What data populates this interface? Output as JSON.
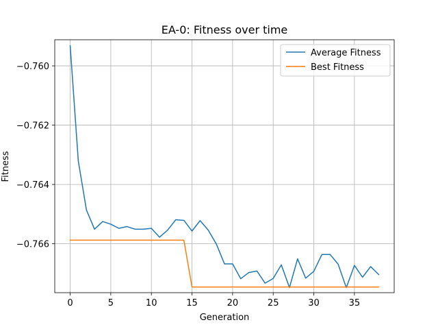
{
  "chart_data": {
    "type": "line",
    "title": "EA-0: Fitness over time",
    "xlabel": "Generation",
    "ylabel": "Fitness",
    "xlim": [
      -1.9,
      39.9
    ],
    "ylim": [
      -0.76765,
      -0.75912
    ],
    "xticks": [
      0,
      5,
      10,
      15,
      20,
      25,
      30,
      35
    ],
    "xtick_labels": [
      "0",
      "5",
      "10",
      "15",
      "20",
      "25",
      "30",
      "35"
    ],
    "yticks": [
      -0.76,
      -0.762,
      -0.764,
      -0.766
    ],
    "ytick_labels": [
      "−0.760",
      "−0.762",
      "−0.764",
      "−0.766"
    ],
    "grid": true,
    "legend_position": "top-right",
    "x": [
      0,
      1,
      2,
      3,
      4,
      5,
      6,
      7,
      8,
      9,
      10,
      11,
      12,
      13,
      14,
      15,
      16,
      17,
      18,
      19,
      20,
      21,
      22,
      23,
      24,
      25,
      26,
      27,
      28,
      29,
      30,
      31,
      32,
      33,
      34,
      35,
      36,
      37,
      38
    ],
    "series": [
      {
        "name": "Average Fitness",
        "color": "#1f77b4",
        "values": [
          -0.75932,
          -0.76321,
          -0.76486,
          -0.76551,
          -0.76525,
          -0.76534,
          -0.76548,
          -0.76542,
          -0.76551,
          -0.76551,
          -0.76548,
          -0.76578,
          -0.76554,
          -0.76519,
          -0.76521,
          -0.76557,
          -0.76522,
          -0.76554,
          -0.76601,
          -0.76668,
          -0.76668,
          -0.76718,
          -0.76697,
          -0.76692,
          -0.76733,
          -0.76717,
          -0.76671,
          -0.76748,
          -0.76651,
          -0.76716,
          -0.76693,
          -0.76636,
          -0.76636,
          -0.76669,
          -0.76748,
          -0.76673,
          -0.76713,
          -0.76677,
          -0.76704
        ]
      },
      {
        "name": "Best Fitness",
        "color": "#ff7f0e",
        "values": [
          -0.76588,
          -0.76588,
          -0.76588,
          -0.76588,
          -0.76588,
          -0.76588,
          -0.76588,
          -0.76588,
          -0.76588,
          -0.76588,
          -0.76588,
          -0.76588,
          -0.76588,
          -0.76588,
          -0.76588,
          -0.76746,
          -0.76746,
          -0.76746,
          -0.76746,
          -0.76746,
          -0.76746,
          -0.76746,
          -0.76746,
          -0.76746,
          -0.76746,
          -0.76746,
          -0.76746,
          -0.76746,
          -0.76746,
          -0.76746,
          -0.76746,
          -0.76746,
          -0.76746,
          -0.76746,
          -0.76746,
          -0.76746,
          -0.76746,
          -0.76746,
          -0.76746
        ]
      }
    ]
  }
}
